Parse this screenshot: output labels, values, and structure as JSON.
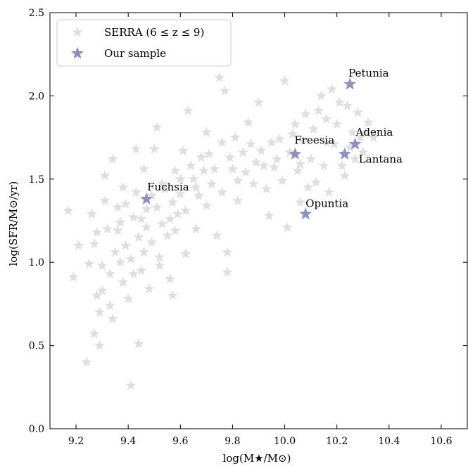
{
  "chart_data": {
    "type": "scatter",
    "xlabel": "log(M★/M⊙)",
    "ylabel": "log(SFR/M⊙/yr)",
    "xlim": [
      9.1,
      10.7
    ],
    "ylim": [
      0.0,
      2.5
    ],
    "x_ticks": [
      "9.2",
      "9.4",
      "9.6",
      "9.8",
      "10.0",
      "10.2",
      "10.4",
      "10.6"
    ],
    "y_ticks": [
      "0.0",
      "0.5",
      "1.0",
      "1.5",
      "2.0",
      "2.5"
    ],
    "grid": false,
    "legend_position": "top-left",
    "colors": {
      "serra": "#c4c4c4",
      "sample": "#8e90bf"
    },
    "series": [
      {
        "name": "SERRA (6 ≤ z ≤ 9)",
        "marker": "star",
        "points": [
          [
            9.17,
            1.31
          ],
          [
            9.19,
            0.91
          ],
          [
            9.21,
            1.1
          ],
          [
            9.24,
            0.4
          ],
          [
            9.26,
            1.29
          ],
          [
            9.27,
            0.57
          ],
          [
            9.28,
            0.8
          ],
          [
            9.29,
            0.5
          ],
          [
            9.3,
            0.83
          ],
          [
            9.31,
            1.52
          ],
          [
            9.32,
            1.2
          ],
          [
            9.33,
            0.93
          ],
          [
            9.34,
            1.62
          ],
          [
            9.36,
            1.33
          ],
          [
            9.37,
            1.0
          ],
          [
            9.38,
            1.45
          ],
          [
            9.39,
            1.1
          ],
          [
            9.4,
            0.78
          ],
          [
            9.41,
            0.26
          ],
          [
            9.42,
            1.27
          ],
          [
            9.43,
            1.68
          ],
          [
            9.44,
            0.51
          ],
          [
            9.45,
            0.95
          ],
          [
            9.46,
            1.56
          ],
          [
            9.47,
            1.21
          ],
          [
            9.48,
            0.84
          ],
          [
            9.49,
            1.4
          ],
          [
            9.5,
            1.68
          ],
          [
            9.51,
            1.81
          ],
          [
            9.52,
            1.03
          ],
          [
            9.53,
            1.47
          ],
          [
            9.55,
            1.16
          ],
          [
            9.56,
            0.9
          ],
          [
            9.57,
            0.8
          ],
          [
            9.58,
            1.55
          ],
          [
            9.59,
            1.29
          ],
          [
            9.6,
            1.41
          ],
          [
            9.61,
            1.67
          ],
          [
            9.62,
            1.05
          ],
          [
            9.63,
            1.91
          ],
          [
            9.65,
            1.5
          ],
          [
            9.66,
            1.2
          ],
          [
            9.68,
            1.63
          ],
          [
            9.7,
            1.78
          ],
          [
            9.72,
            1.47
          ],
          [
            9.74,
            1.16
          ],
          [
            9.75,
            2.11
          ],
          [
            9.76,
            1.72
          ],
          [
            9.77,
            2.03
          ],
          [
            9.78,
            1.06
          ],
          [
            9.78,
            0.94
          ],
          [
            9.8,
            1.56
          ],
          [
            9.82,
            1.37
          ],
          [
            9.84,
            1.66
          ],
          [
            9.86,
            1.84
          ],
          [
            9.88,
            1.47
          ],
          [
            9.9,
            1.96
          ],
          [
            9.92,
            1.58
          ],
          [
            9.94,
            1.28
          ],
          [
            9.95,
            1.72
          ],
          [
            9.97,
            1.62
          ],
          [
            9.99,
            1.49
          ],
          [
            10.0,
            2.09
          ],
          [
            10.01,
            1.21
          ],
          [
            10.03,
            1.77
          ],
          [
            10.05,
            1.55
          ],
          [
            10.06,
            1.36
          ],
          [
            10.08,
            1.89
          ],
          [
            10.1,
            1.62
          ],
          [
            10.12,
            1.48
          ],
          [
            10.14,
            2.0
          ],
          [
            10.16,
            1.72
          ],
          [
            10.17,
            1.42
          ],
          [
            10.18,
            2.04
          ],
          [
            10.2,
            1.83
          ],
          [
            10.22,
            1.58
          ],
          [
            10.24,
            1.94
          ],
          [
            10.26,
            1.78
          ],
          [
            10.28,
            1.9
          ],
          [
            10.3,
            1.66
          ],
          [
            10.32,
            1.84
          ],
          [
            9.25,
            0.99
          ],
          [
            9.27,
            1.11
          ],
          [
            9.29,
            0.7
          ],
          [
            9.33,
            0.74
          ],
          [
            9.35,
            1.06
          ],
          [
            9.38,
            0.88
          ],
          [
            9.41,
            1.02
          ],
          [
            9.44,
            1.15
          ],
          [
            9.47,
            1.32
          ],
          [
            9.53,
            1.23
          ],
          [
            9.57,
            1.36
          ],
          [
            9.62,
            1.31
          ],
          [
            9.66,
            1.45
          ],
          [
            9.7,
            1.34
          ],
          [
            9.73,
            1.56
          ],
          [
            9.82,
            1.49
          ],
          [
            9.87,
            1.71
          ],
          [
            9.93,
            1.44
          ],
          [
            10.02,
            1.66
          ],
          [
            10.07,
            1.73
          ],
          [
            10.11,
            1.8
          ],
          [
            10.15,
            1.58
          ],
          [
            10.19,
            1.71
          ],
          [
            10.23,
            1.52
          ],
          [
            10.29,
            1.75
          ],
          [
            9.28,
            1.18
          ],
          [
            9.31,
            1.37
          ],
          [
            9.36,
            1.19
          ],
          [
            9.39,
            1.35
          ],
          [
            9.43,
            1.42
          ],
          [
            9.46,
            1.06
          ],
          [
            9.51,
            1.33
          ],
          [
            9.54,
            1.44
          ],
          [
            9.58,
            1.19
          ],
          [
            9.64,
            1.58
          ],
          [
            9.69,
            1.55
          ],
          [
            9.79,
            1.63
          ],
          [
            9.85,
            1.54
          ],
          [
            9.91,
            1.67
          ],
          [
            9.98,
            1.74
          ],
          [
            10.04,
            1.83
          ],
          [
            10.09,
            1.45
          ],
          [
            10.13,
            1.91
          ],
          [
            10.21,
            1.96
          ],
          [
            10.27,
            1.62
          ],
          [
            9.3,
            0.98
          ],
          [
            9.34,
            0.66
          ],
          [
            9.37,
            1.24
          ],
          [
            9.42,
            0.93
          ],
          [
            9.45,
            1.26
          ],
          [
            9.49,
            1.12
          ],
          [
            9.52,
            0.98
          ],
          [
            9.56,
            1.26
          ],
          [
            9.6,
            1.5
          ],
          [
            9.67,
            1.4
          ],
          [
            9.71,
            1.65
          ],
          [
            9.76,
            1.42
          ],
          [
            9.81,
            1.75
          ],
          [
            9.89,
            1.6
          ],
          [
            9.96,
            1.57
          ],
          [
            10.06,
            1.59
          ],
          [
            10.16,
            1.86
          ],
          [
            10.25,
            1.69
          ],
          [
            10.31,
            1.78
          ],
          [
            10.34,
            1.75
          ]
        ]
      },
      {
        "name": "Our sample",
        "marker": "star",
        "points": [
          {
            "x": 9.47,
            "y": 1.38,
            "label": "Fuchsia"
          },
          {
            "x": 10.04,
            "y": 1.65,
            "label": "Freesia"
          },
          {
            "x": 10.08,
            "y": 1.29,
            "label": "Opuntia"
          },
          {
            "x": 10.25,
            "y": 2.07,
            "label": "Petunia"
          },
          {
            "x": 10.27,
            "y": 1.71,
            "label": "Adenia"
          },
          {
            "x": 10.23,
            "y": 1.65,
            "label": "Lantana"
          }
        ]
      }
    ]
  }
}
